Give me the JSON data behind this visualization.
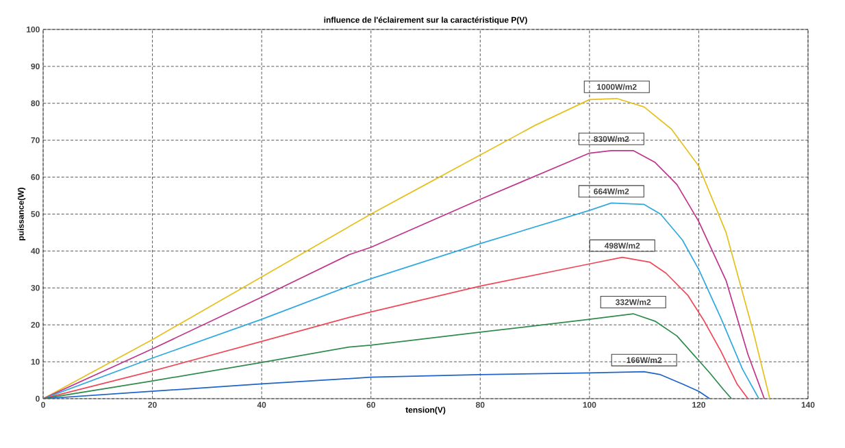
{
  "chart_data": {
    "type": "line",
    "title": "influence de l'éclairement sur la caractéristique P(V)",
    "xlabel": "tension(V)",
    "ylabel": "puissance(W)",
    "xlim": [
      0,
      140
    ],
    "ylim": [
      0,
      100
    ],
    "xticks": [
      0,
      20,
      40,
      60,
      80,
      100,
      120,
      140
    ],
    "yticks": [
      0,
      10,
      20,
      30,
      40,
      50,
      60,
      70,
      80,
      90,
      100
    ],
    "grid": true,
    "marker": "none",
    "line_style": "solid",
    "series": [
      {
        "name": "1000W/m2",
        "color": "#e6c01e",
        "x": [
          0,
          20,
          40,
          60,
          70,
          80,
          90,
          100,
          105,
          110,
          115,
          120,
          125,
          130,
          133
        ],
        "values": [
          0,
          16,
          33,
          50,
          58,
          66,
          74,
          81,
          81.3,
          79,
          73,
          63,
          45,
          18,
          0
        ]
      },
      {
        "name": "830W/m2",
        "color": "#c0348c",
        "x": [
          0,
          20,
          40,
          56,
          60,
          80,
          100,
          104,
          108,
          112,
          116,
          120,
          125,
          129,
          132
        ],
        "values": [
          0,
          13.5,
          27.5,
          39,
          41,
          54,
          66.5,
          67.2,
          67.2,
          64,
          58,
          48,
          32,
          12,
          0
        ]
      },
      {
        "name": "664W/m2",
        "color": "#30a8e0",
        "x": [
          0,
          20,
          40,
          56,
          60,
          80,
          100,
          104,
          110,
          113,
          117,
          120,
          124,
          128,
          131
        ],
        "values": [
          0,
          11,
          21.5,
          30.5,
          32.5,
          42,
          51,
          53,
          52.6,
          50,
          43,
          35,
          22,
          8,
          0
        ]
      },
      {
        "name": "498W/m2",
        "color": "#f04858",
        "x": [
          0,
          20,
          40,
          56,
          60,
          80,
          100,
          106,
          111,
          114,
          118,
          121,
          124,
          127,
          129
        ],
        "values": [
          0,
          7.5,
          15.5,
          22,
          23.5,
          30.5,
          36.5,
          38.3,
          37,
          34,
          28,
          21,
          13,
          4,
          0
        ]
      },
      {
        "name": "332W/m2",
        "color": "#2e8b4a",
        "x": [
          0,
          20,
          40,
          56,
          60,
          80,
          100,
          108,
          112,
          116,
          119,
          122,
          124.5,
          126
        ],
        "values": [
          0,
          4.8,
          9.8,
          14,
          14.5,
          18,
          21.5,
          23,
          21,
          17,
          12,
          7,
          2.5,
          0
        ]
      },
      {
        "name": "166W/m2",
        "color": "#1e64c8",
        "x": [
          0,
          20,
          40,
          60,
          80,
          100,
          110,
          113,
          117,
          120,
          122
        ],
        "values": [
          0,
          2,
          4,
          5.8,
          6.5,
          7,
          7.3,
          6.5,
          4,
          2,
          0
        ]
      }
    ]
  }
}
